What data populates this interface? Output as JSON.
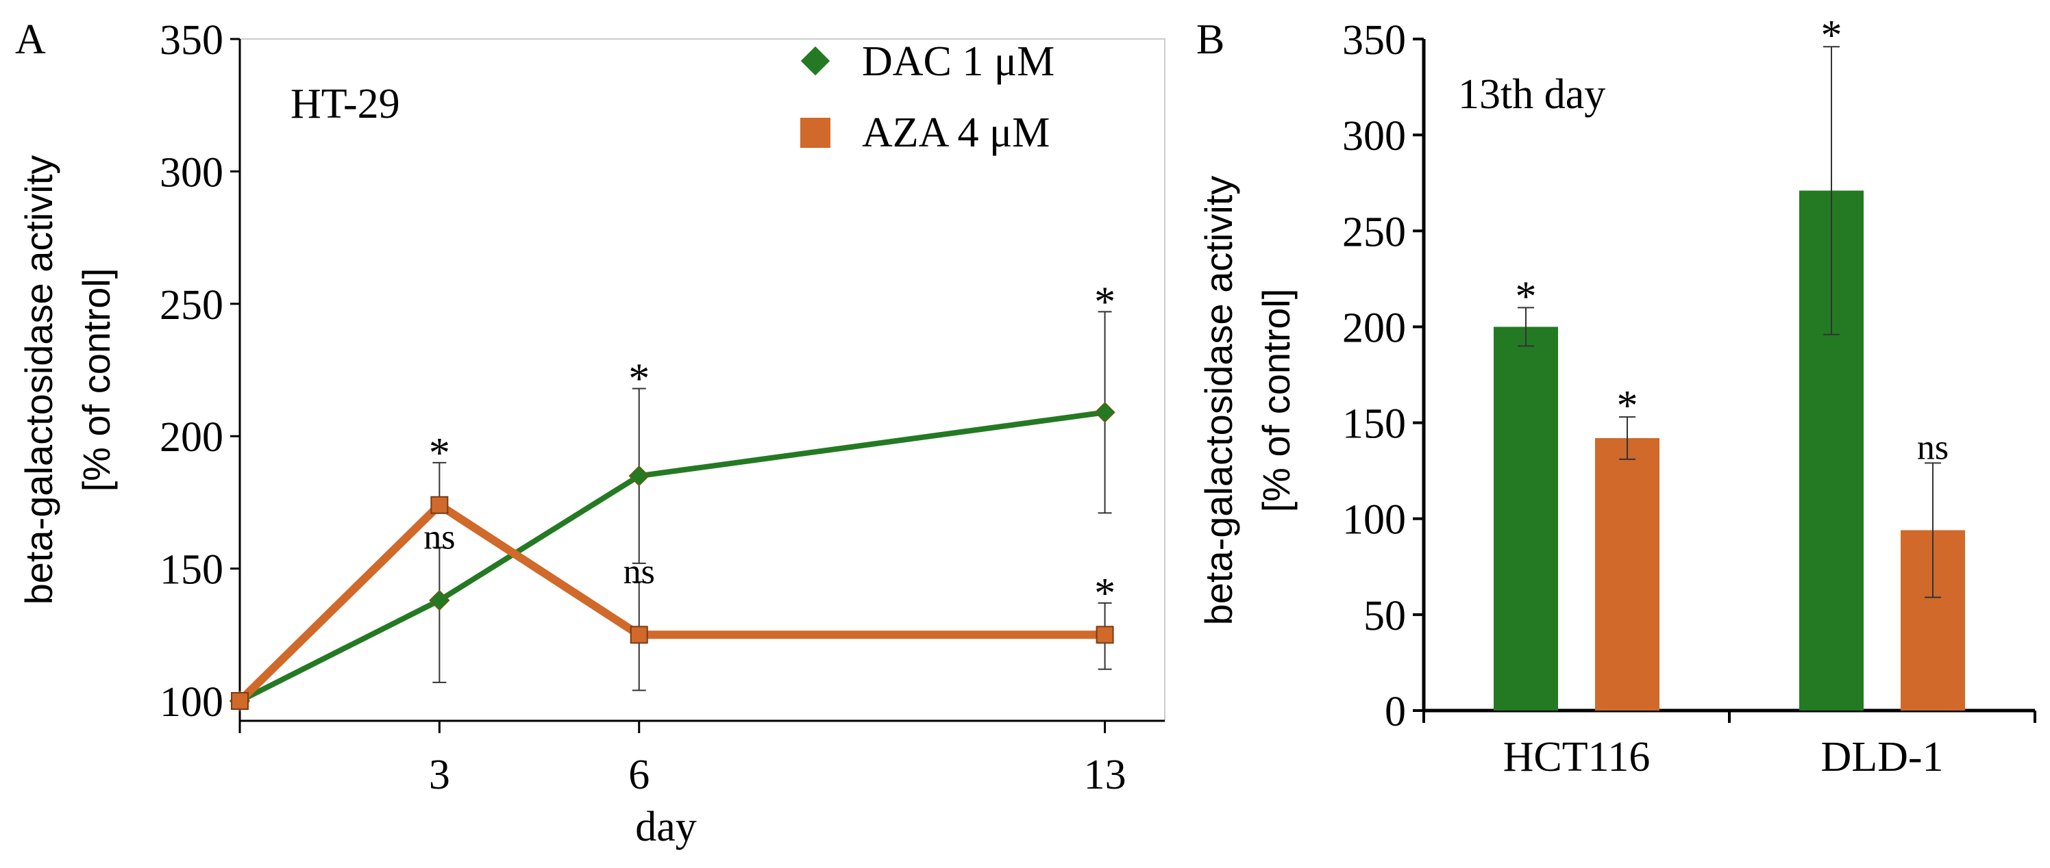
{
  "colors": {
    "dac": "#237a23",
    "aza": "#d0692a",
    "axis": "#000000",
    "err": "#333333",
    "frame": "#cccccc"
  },
  "panelA": {
    "letter": "A",
    "label": "HT-29",
    "legend": [
      {
        "name": "DAC 1 μM",
        "marker": "diamond"
      },
      {
        "name": "AZA 4 μM",
        "marker": "square"
      }
    ]
  },
  "panelB": {
    "letter": "B",
    "label": "13th day"
  },
  "chart_data": [
    {
      "type": "line",
      "title": "HT-29",
      "xlabel": "day",
      "ylabel_line1": "beta-galactosidase activity",
      "ylabel_line2": "[% of control]",
      "x": [
        0,
        3,
        6,
        13
      ],
      "xticks": [
        3,
        6,
        13
      ],
      "xtick_labels": [
        "3",
        "6",
        "13"
      ],
      "xlim": [
        0,
        13.9
      ],
      "yticks": [
        100,
        150,
        200,
        250,
        300,
        350
      ],
      "ytick_labels": [
        "100",
        "150",
        "200",
        "250",
        "300",
        "350"
      ],
      "ylim": [
        91,
        350
      ],
      "legend_position": "top-right",
      "series": [
        {
          "name": "DAC 1 μM",
          "values": [
            100,
            138,
            185,
            209
          ],
          "err_low": [
            100,
            107,
            152,
            171
          ],
          "err_high": [
            100,
            158,
            218,
            247
          ],
          "marks": [
            "",
            "ns",
            "*",
            "*"
          ]
        },
        {
          "name": "AZA 4 μM",
          "values": [
            100,
            174,
            125,
            125
          ],
          "err_low": [
            100,
            174,
            104,
            112
          ],
          "err_high": [
            100,
            190,
            145,
            137
          ],
          "marks": [
            "",
            "*",
            "ns",
            "*"
          ]
        }
      ]
    },
    {
      "type": "bar",
      "title": "13th day",
      "ylabel_line1": "beta-galactosidase activity",
      "ylabel_line2": "[% of control]",
      "categories": [
        "HCT116",
        "DLD-1"
      ],
      "yticks": [
        0,
        50,
        100,
        150,
        200,
        250,
        300,
        350
      ],
      "ytick_labels": [
        "0",
        "50",
        "100",
        "150",
        "200",
        "250",
        "300",
        "350"
      ],
      "ylim": [
        0,
        350
      ],
      "series": [
        {
          "name": "DAC 1 μM",
          "values": [
            200,
            271
          ],
          "err_low": [
            190,
            196
          ],
          "err_high": [
            210,
            346
          ],
          "marks": [
            "*",
            "*"
          ]
        },
        {
          "name": "AZA 4 μM",
          "values": [
            142,
            94
          ],
          "err_low": [
            131,
            59
          ],
          "err_high": [
            153,
            129
          ],
          "marks": [
            "*",
            "ns"
          ]
        }
      ]
    }
  ]
}
